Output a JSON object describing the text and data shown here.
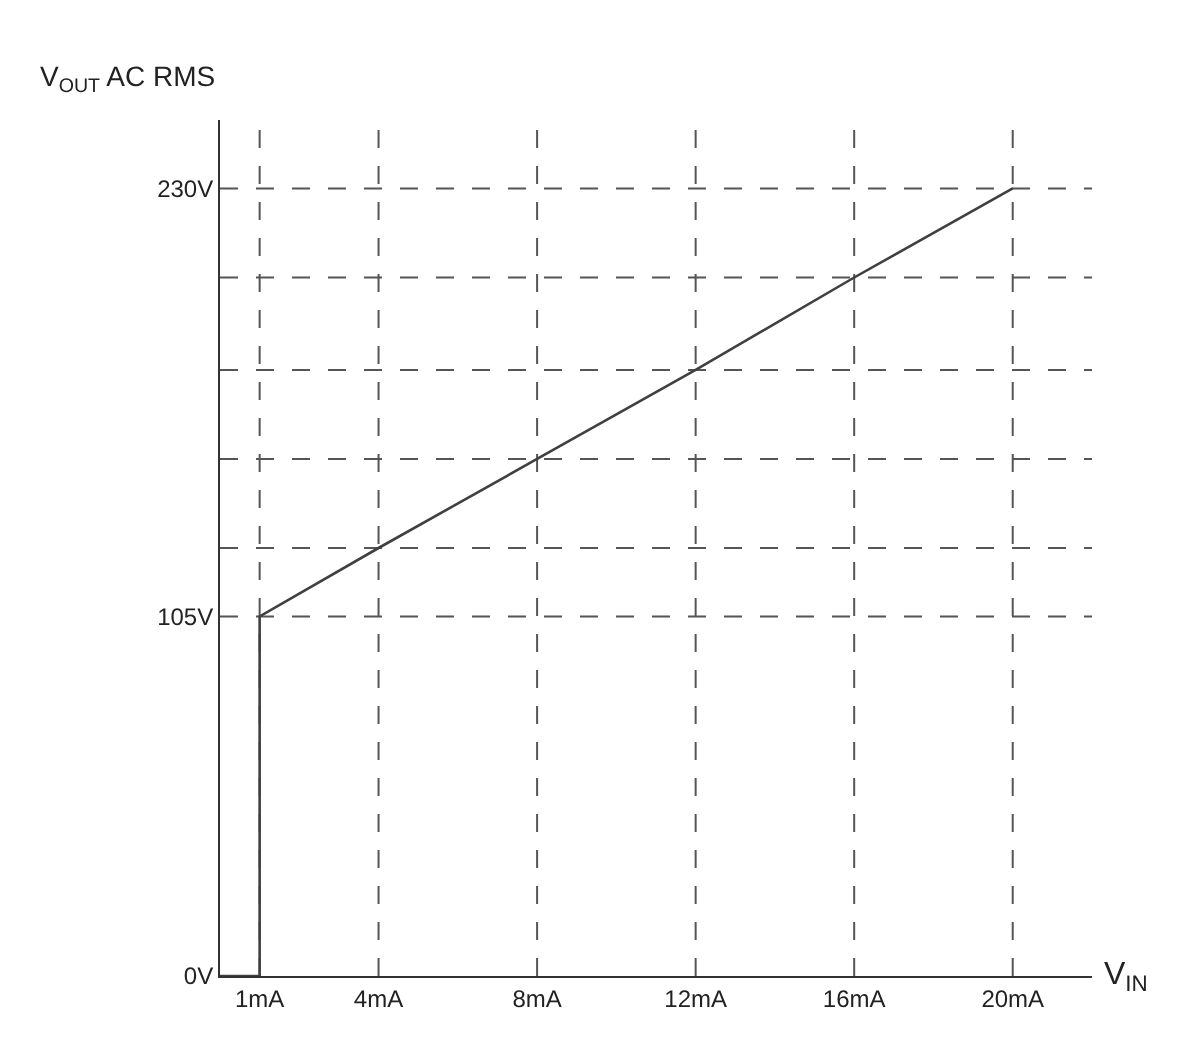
{
  "chart_data": {
    "type": "line",
    "xlabel": "V$_{IN}$",
    "ylabel": "V$_{OUT}$ AC RMS",
    "x": [
      0,
      1,
      1,
      4,
      8,
      12,
      16,
      20
    ],
    "series": [
      {
        "color": "#404040",
        "values": [
          0,
          0,
          105,
          125,
          151,
          177,
          204,
          230
        ]
      }
    ],
    "xlim": [
      0,
      22
    ],
    "ylim": [
      0,
      250
    ],
    "xticks": [
      {
        "value": 1,
        "label": "1mA"
      },
      {
        "value": 4,
        "label": "4mA"
      },
      {
        "value": 8,
        "label": "8mA"
      },
      {
        "value": 12,
        "label": "12mA"
      },
      {
        "value": 16,
        "label": "16mA"
      },
      {
        "value": 20,
        "label": "20mA"
      }
    ],
    "yticks": [
      {
        "value": 0,
        "label": "0V"
      },
      {
        "value": 105,
        "label": "105V"
      },
      {
        "value": 230,
        "label": "230V"
      }
    ],
    "ref_lines": [
      {
        "axis": "x",
        "value": 1,
        "line_style": "dashed"
      },
      {
        "axis": "x",
        "value": 4,
        "line_style": "dashed"
      },
      {
        "axis": "x",
        "value": 8,
        "line_style": "dashed"
      },
      {
        "axis": "x",
        "value": 12,
        "line_style": "dashed"
      },
      {
        "axis": "x",
        "value": 16,
        "line_style": "dashed"
      },
      {
        "axis": "x",
        "value": 20,
        "line_style": "dashed"
      },
      {
        "axis": "y",
        "value": 105,
        "line_style": "dashed"
      },
      {
        "axis": "y",
        "value": 125,
        "line_style": "dashed"
      },
      {
        "axis": "y",
        "value": 151,
        "line_style": "dashed"
      },
      {
        "axis": "y",
        "value": 177,
        "line_style": "dashed"
      },
      {
        "axis": "y",
        "value": 204,
        "line_style": "dashed"
      },
      {
        "axis": "y",
        "value": 230,
        "line_style": "dashed"
      }
    ],
    "marker": "none",
    "line_style": "solid"
  }
}
